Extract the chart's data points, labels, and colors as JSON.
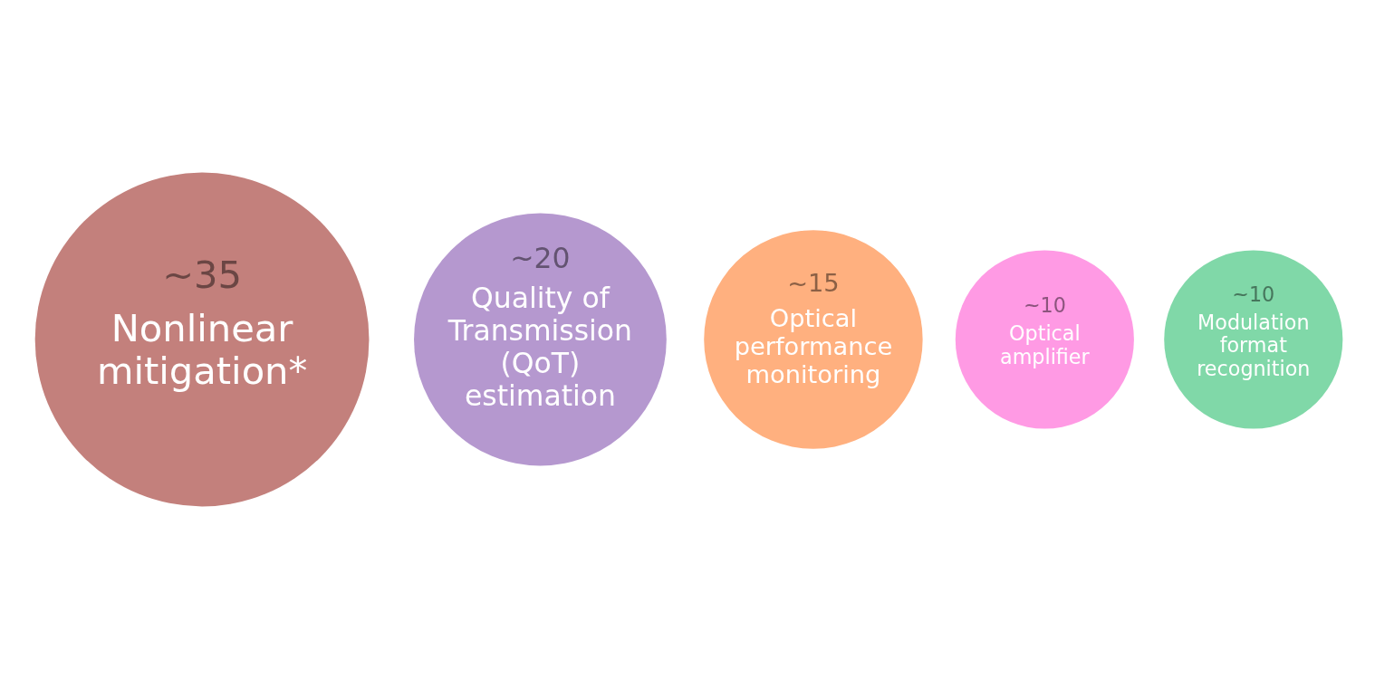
{
  "chart_data": {
    "type": "other",
    "categories": [
      "Nonlinear mitigation*",
      "Quality of Transmission (QoT) estimation",
      "Optical performance monitoring",
      "Optical amplifier",
      "Modulation format recognition"
    ],
    "values": [
      35,
      20,
      15,
      10,
      10
    ],
    "value_labels": [
      "~35",
      "~20",
      "~15",
      "~10",
      "~10"
    ],
    "colors": [
      "#c3807c",
      "#b598cf",
      "#ffb07f",
      "#ff9ae4",
      "#80d8a8"
    ]
  }
}
